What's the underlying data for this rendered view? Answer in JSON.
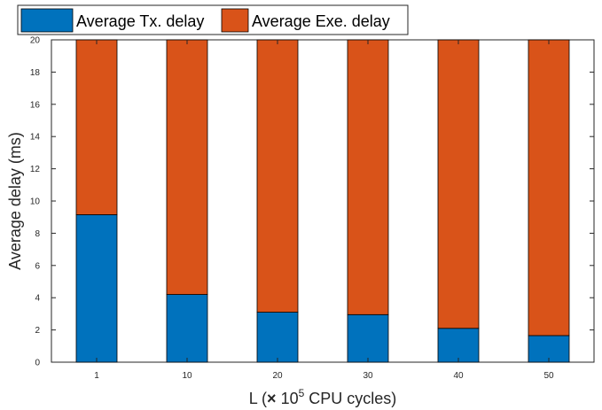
{
  "chart_data": {
    "type": "bar",
    "stacked": true,
    "categories": [
      "1",
      "10",
      "20",
      "30",
      "40",
      "50"
    ],
    "series": [
      {
        "name": "Average Tx. delay",
        "color": "#0072BD",
        "values": [
          9.15,
          4.2,
          3.1,
          2.95,
          2.1,
          1.65
        ]
      },
      {
        "name": "Average Exe. delay",
        "color": "#D95319",
        "values": [
          10.85,
          15.8,
          16.9,
          17.05,
          17.9,
          18.35
        ]
      }
    ],
    "xlabel": {
      "prefix": "L (",
      "times": "×",
      "base": " 10",
      "exponent": "5",
      "suffix": " CPU cycles)"
    },
    "ylabel": "Average delay (ms)",
    "ylim": [
      0,
      20
    ],
    "yticks": [
      "0",
      "2",
      "4",
      "6",
      "8",
      "10",
      "12",
      "14",
      "16",
      "18",
      "20"
    ],
    "grid": false,
    "legend_position": "top-left"
  }
}
